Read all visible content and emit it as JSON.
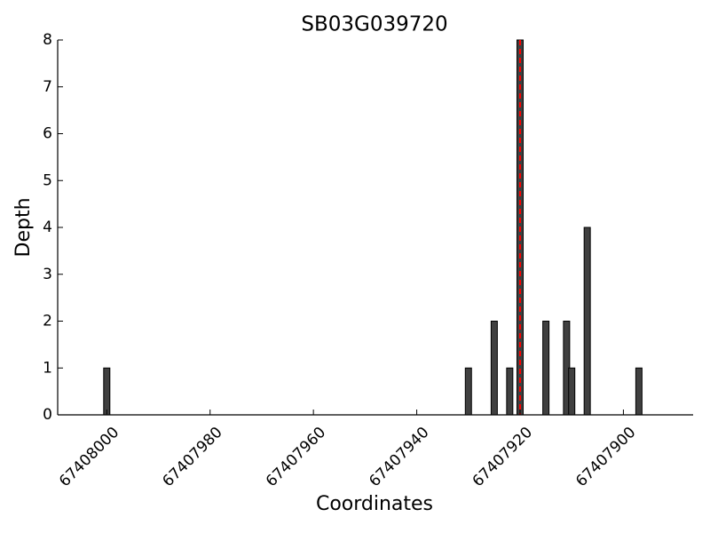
{
  "chart_data": {
    "type": "bar",
    "title": "SB03G039720",
    "x_label": "Coordinates",
    "y_label": "Depth",
    "x": [
      67408000,
      67407930,
      67407925,
      67407922,
      67407920,
      67407915,
      67407911,
      67407910,
      67407907,
      67407897
    ],
    "values": [
      1,
      1,
      2,
      1,
      8,
      2,
      2,
      1,
      4,
      1
    ],
    "color": "#404040",
    "edge_color": "#000000",
    "bar_width": 1.2,
    "xlim": [
      67408009.5,
      67407886.5
    ],
    "xticks": [
      67408000,
      67407980,
      67407960,
      67407940,
      67407920,
      67407900
    ],
    "ylim": [
      0,
      8
    ],
    "yticks": [
      0,
      1,
      2,
      3,
      4,
      5,
      6,
      7,
      8
    ],
    "vline": {
      "x": 67407920,
      "color": "#ff0000"
    }
  }
}
